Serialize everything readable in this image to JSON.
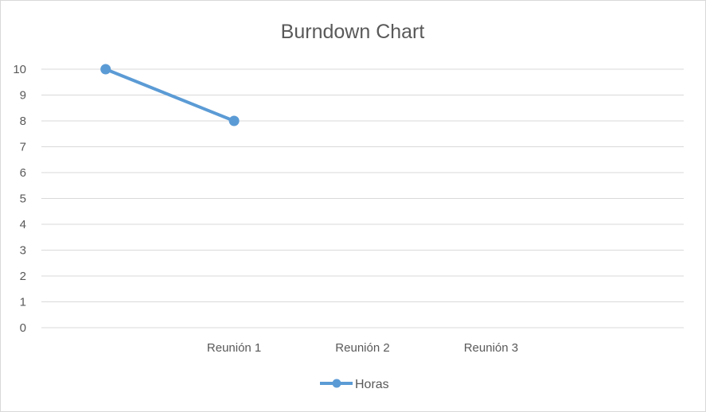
{
  "chart_data": {
    "type": "line",
    "title": "Burndown Chart",
    "xlabel": "",
    "ylabel": "",
    "categories": [
      "",
      "Reunión 1",
      "Reunión 2",
      "Reunión 3",
      ""
    ],
    "series": [
      {
        "name": "Horas",
        "values": [
          10,
          8,
          null,
          null,
          null
        ],
        "color": "#5b9bd5"
      }
    ],
    "ylim": [
      0,
      10
    ],
    "yticks": [
      0,
      1,
      2,
      3,
      4,
      5,
      6,
      7,
      8,
      9,
      10
    ],
    "grid": true,
    "legend_position": "bottom"
  }
}
